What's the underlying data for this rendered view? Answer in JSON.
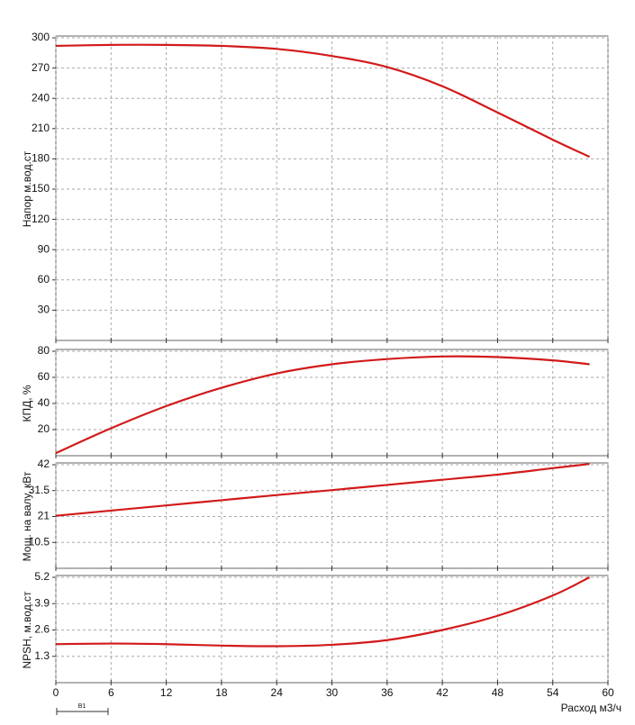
{
  "chart_data": [
    {
      "type": "line",
      "y_label": "Напор м.вод.ст",
      "x": [
        0,
        6,
        12,
        18,
        24,
        30,
        36,
        42,
        48,
        54,
        58
      ],
      "xlim": [
        0,
        60
      ],
      "xticks": [
        0,
        6,
        12,
        18,
        24,
        30,
        36,
        42,
        48,
        54,
        60
      ],
      "ylim": [
        0,
        300
      ],
      "yticks": [
        30,
        60,
        90,
        120,
        150,
        180,
        210,
        240,
        270,
        300
      ],
      "grid": true,
      "series": [
        {
          "color": "#d21a1a",
          "values": [
            292,
            293,
            293,
            292,
            289,
            282,
            271,
            252,
            226,
            199,
            182
          ]
        }
      ]
    },
    {
      "type": "line",
      "y_label": "КПД, %",
      "x": [
        0,
        6,
        12,
        18,
        24,
        30,
        36,
        42,
        48,
        54,
        58
      ],
      "xlim": [
        0,
        60
      ],
      "xticks": [
        0,
        6,
        12,
        18,
        24,
        30,
        36,
        42,
        48,
        54,
        60
      ],
      "ylim": [
        0,
        80
      ],
      "yticks": [
        20,
        40,
        60,
        80
      ],
      "grid": true,
      "series": [
        {
          "color": "#d21a1a",
          "values": [
            2,
            21,
            38,
            52,
            63,
            70,
            74,
            76,
            75.5,
            73,
            70
          ]
        }
      ]
    },
    {
      "type": "line",
      "y_label": "Мощ. на валу, кВт",
      "x": [
        0,
        6,
        12,
        18,
        24,
        30,
        36,
        42,
        48,
        54,
        58
      ],
      "xlim": [
        0,
        60
      ],
      "xticks": [
        0,
        6,
        12,
        18,
        24,
        30,
        36,
        42,
        48,
        54,
        60
      ],
      "ylim": [
        0,
        42
      ],
      "yticks": [
        10.5,
        21,
        31.5,
        42
      ],
      "grid": true,
      "series": [
        {
          "color": "#d21a1a",
          "values": [
            21.3,
            23.4,
            25.5,
            27.6,
            29.7,
            31.7,
            33.8,
            35.9,
            38,
            40.6,
            42.3
          ]
        }
      ]
    },
    {
      "type": "line",
      "y_label": "NPSH, м.вод.ст",
      "x_label": "Расход м3/ч",
      "annotation": "B1",
      "x": [
        0,
        6,
        12,
        18,
        24,
        30,
        36,
        42,
        48,
        54,
        58
      ],
      "xlim": [
        0,
        60
      ],
      "xticks": [
        0,
        6,
        12,
        18,
        24,
        30,
        36,
        42,
        48,
        54,
        60
      ],
      "ylim": [
        0,
        5.2
      ],
      "yticks": [
        1.3,
        2.6,
        3.9,
        5.2
      ],
      "grid": true,
      "show_xtick_labels": true,
      "series": [
        {
          "color": "#d21a1a",
          "values": [
            1.9,
            1.93,
            1.9,
            1.83,
            1.8,
            1.87,
            2.1,
            2.6,
            3.3,
            4.3,
            5.2
          ]
        }
      ]
    }
  ]
}
